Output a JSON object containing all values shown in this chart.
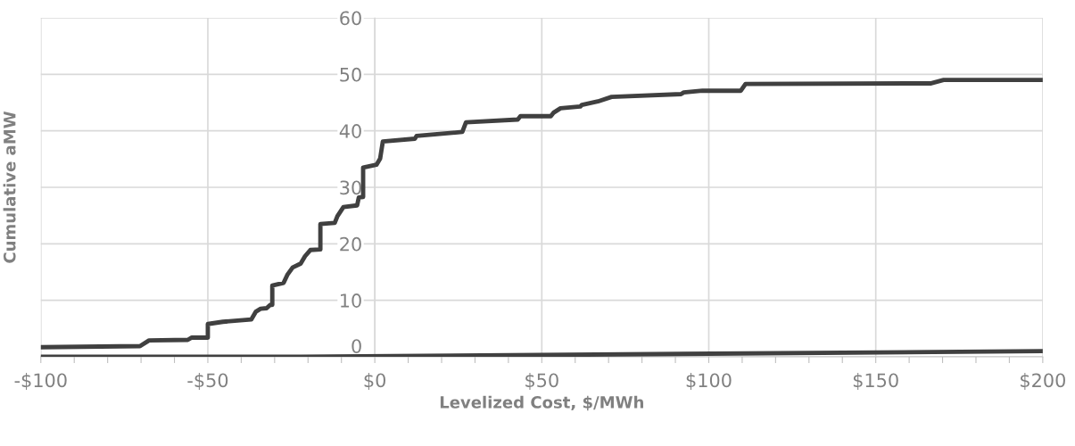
{
  "chart_data": {
    "type": "line",
    "xlabel": "Levelized Cost, $/MWh",
    "ylabel": "Cumulative aMW",
    "xlim": [
      -100,
      200
    ],
    "ylim": [
      0,
      60
    ],
    "xticks": [
      {
        "value": -100,
        "label": "-$100"
      },
      {
        "value": -90,
        "label": null
      },
      {
        "value": -80,
        "label": null
      },
      {
        "value": -70,
        "label": null
      },
      {
        "value": -60,
        "label": null
      },
      {
        "value": -50,
        "label": "-$50"
      },
      {
        "value": -40,
        "label": null
      },
      {
        "value": -30,
        "label": null
      },
      {
        "value": -20,
        "label": null
      },
      {
        "value": -10,
        "label": null
      },
      {
        "value": 0,
        "label": "$0"
      },
      {
        "value": 10,
        "label": null
      },
      {
        "value": 20,
        "label": null
      },
      {
        "value": 30,
        "label": null
      },
      {
        "value": 40,
        "label": null
      },
      {
        "value": 50,
        "label": "$50"
      },
      {
        "value": 60,
        "label": null
      },
      {
        "value": 70,
        "label": null
      },
      {
        "value": 80,
        "label": null
      },
      {
        "value": 90,
        "label": null
      },
      {
        "value": 100,
        "label": "$100"
      },
      {
        "value": 110,
        "label": null
      },
      {
        "value": 120,
        "label": null
      },
      {
        "value": 130,
        "label": null
      },
      {
        "value": 140,
        "label": null
      },
      {
        "value": 150,
        "label": "$150"
      },
      {
        "value": 160,
        "label": null
      },
      {
        "value": 170,
        "label": null
      },
      {
        "value": 180,
        "label": null
      },
      {
        "value": 190,
        "label": null
      },
      {
        "value": 200,
        "label": "$200"
      }
    ],
    "yticks": [
      0,
      10,
      20,
      30,
      40,
      50,
      60
    ],
    "grid": true,
    "marker": "none",
    "line_style": "solid",
    "series": [
      {
        "color": "#404040",
        "x": [
          -100,
          -70.3,
          -67.6,
          -56,
          -54.8,
          -50,
          -50,
          -45.5,
          -37,
          -35.6,
          -34.2,
          -32.4,
          -31.3,
          -30.7,
          -30.7,
          -27.3,
          -26.2,
          -24.6,
          -22.2,
          -20.9,
          -19.3,
          -16.3,
          -16.3,
          -12,
          -11.2,
          -9.4,
          -5.3,
          -4.8,
          -3.5,
          -3.5,
          0.5,
          1.6,
          2.4,
          12,
          12.5,
          26.2,
          27.3,
          42.8,
          43.6,
          52.7,
          53.5,
          55.6,
          61.5,
          62,
          66.8,
          70.9,
          91.7,
          92.5,
          98.1,
          109.6,
          111,
          166.6,
          170.3,
          200
        ],
        "values": [
          1.7,
          1.9,
          2.9,
          3.0,
          3.4,
          3.4,
          5.8,
          6.2,
          6.6,
          8.0,
          8.5,
          8.6,
          9.2,
          9.2,
          12.6,
          13.1,
          14.5,
          15.8,
          16.5,
          17.8,
          18.9,
          19.0,
          23.5,
          23.7,
          24.9,
          26.5,
          26.8,
          28.2,
          28.3,
          33.5,
          34.0,
          35.1,
          38.1,
          38.6,
          39.1,
          39.8,
          41.5,
          42.0,
          42.6,
          42.6,
          43.2,
          44.0,
          44.3,
          44.6,
          45.2,
          46.0,
          46.5,
          46.8,
          47.1,
          47.1,
          48.3,
          48.4,
          49.0,
          49.0
        ]
      },
      {
        "color": "#404040",
        "x": [
          -100,
          -22,
          200
        ],
        "values": [
          0,
          0,
          1.0
        ]
      }
    ]
  }
}
